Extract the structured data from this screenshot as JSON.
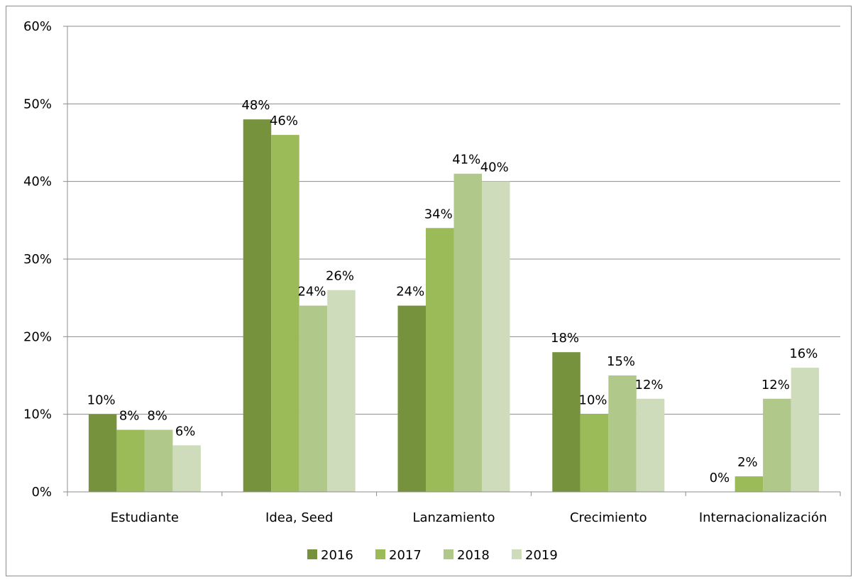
{
  "chart_data": {
    "type": "bar",
    "title": "",
    "xlabel": "",
    "ylabel": "",
    "categories": [
      "Estudiante",
      "Idea, Seed",
      "Lanzamiento",
      "Crecimiento",
      "Internacionalización"
    ],
    "series": [
      {
        "name": "2016",
        "color": "#76923c",
        "values": [
          10,
          48,
          24,
          18,
          0
        ]
      },
      {
        "name": "2017",
        "color": "#9bbb59",
        "values": [
          8,
          46,
          34,
          10,
          2
        ]
      },
      {
        "name": "2018",
        "color": "#b0c98a",
        "values": [
          8,
          24,
          41,
          15,
          12
        ]
      },
      {
        "name": "2019",
        "color": "#cfdcbc",
        "values": [
          6,
          26,
          40,
          12,
          16
        ]
      }
    ],
    "ylim": [
      0,
      60
    ],
    "yticks": [
      0,
      10,
      20,
      30,
      40,
      50,
      60
    ],
    "ytick_suffix": "%",
    "value_suffix": "%",
    "grid": true,
    "legend_position": "bottom"
  }
}
